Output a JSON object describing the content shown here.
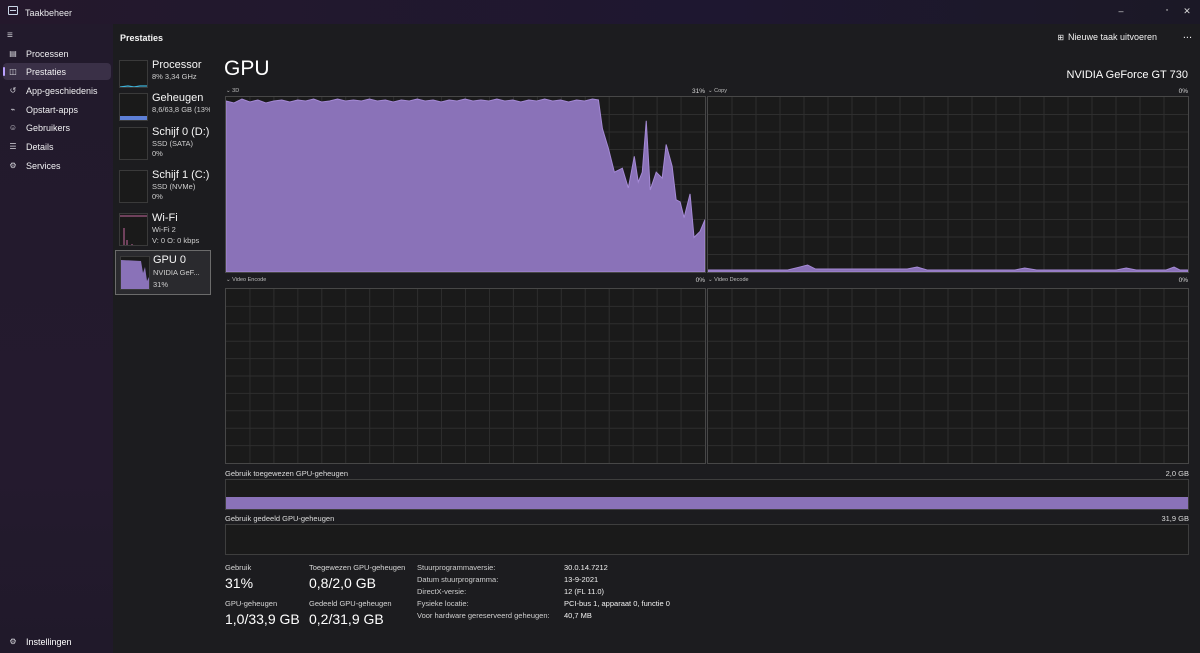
{
  "window": {
    "title": "Taakbeheer",
    "minimize": "–",
    "maximize": "▫",
    "close": "✕"
  },
  "sidebar": {
    "menu_icon": "hamburger-icon",
    "items": [
      {
        "label": "Processen",
        "icon": "processes-icon"
      },
      {
        "label": "Prestaties",
        "icon": "performance-icon",
        "active": true
      },
      {
        "label": "App-geschiedenis",
        "icon": "history-icon"
      },
      {
        "label": "Opstart-apps",
        "icon": "startup-icon"
      },
      {
        "label": "Gebruikers",
        "icon": "users-icon"
      },
      {
        "label": "Details",
        "icon": "details-icon"
      },
      {
        "label": "Services",
        "icon": "services-icon"
      }
    ],
    "settings": {
      "label": "Instellingen",
      "icon": "gear-icon"
    }
  },
  "header": {
    "title": "Prestaties",
    "new_task": "Nieuwe taak uitvoeren",
    "more": "..."
  },
  "devices": [
    {
      "name": "Processor",
      "line1": "8% 3,34 GHz"
    },
    {
      "name": "Geheugen",
      "line1": "8,6/63,8 GB (13%)"
    },
    {
      "name": "Schijf 0 (D:)",
      "line1": "SSD (SATA)",
      "line2": "0%"
    },
    {
      "name": "Schijf 1 (C:)",
      "line1": "SSD (NVMe)",
      "line2": "0%"
    },
    {
      "name": "Wi-Fi",
      "line1": "Wi-Fi 2",
      "line2": "V: 0 O: 0 kbps"
    },
    {
      "name": "GPU 0",
      "line1": "NVIDIA GeF...",
      "line2": "31%",
      "selected": true
    }
  ],
  "gpu": {
    "title": "GPU",
    "model": "NVIDIA GeForce GT 730",
    "engines": [
      {
        "label": "3D",
        "pct": "31%"
      },
      {
        "label": "Copy",
        "pct": "0%"
      },
      {
        "label": "Video Encode",
        "pct": "0%"
      },
      {
        "label": "Video Decode",
        "pct": "0%"
      }
    ],
    "dedicated_label": "Gebruik toegewezen GPU-geheugen",
    "dedicated_max": "2,0 GB",
    "dedicated_level": 0.4,
    "shared_label": "Gebruik gedeeld GPU-geheugen",
    "shared_max": "31,9 GB",
    "shared_level": 0.0,
    "stats": {
      "usage_label": "Gebruik",
      "usage_value": "31%",
      "assigned_label": "Toegewezen GPU-geheugen",
      "assigned_value": "0,8/2,0 GB",
      "gpu_mem_label": "GPU-geheugen",
      "gpu_mem_value": "1,0/33,9 GB",
      "shared_label": "Gedeeld GPU-geheugen",
      "shared_value": "0,2/31,9 GB"
    },
    "info": [
      {
        "key": "Stuurprogrammaversie:",
        "value": "30.0.14.7212"
      },
      {
        "key": "Datum stuurprogramma:",
        "value": "13-9-2021"
      },
      {
        "key": "DirectX-versie:",
        "value": "12 (FL 11.0)"
      },
      {
        "key": "Fysieke locatie:",
        "value": "PCI-bus 1, apparaat 0, functie 0"
      },
      {
        "key": "Voor hardware gereserveerd geheugen:",
        "value": "40,7 MB"
      }
    ]
  },
  "colors": {
    "accent": "#b9a0ff",
    "graph_fill": "#8a72b8",
    "graph_line": "#a58ad6"
  }
}
